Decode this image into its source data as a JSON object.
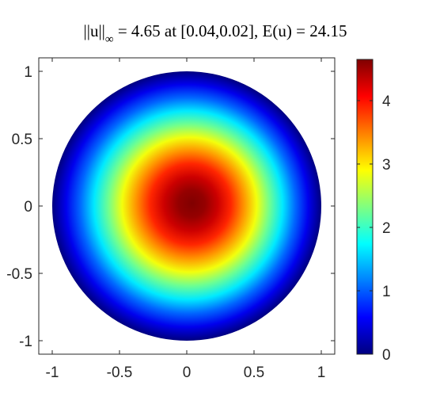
{
  "chart_data": {
    "type": "heatmap",
    "title": {
      "norm_prefix": "||u||",
      "norm_subscript": "∞",
      "rest": " = 4.65 at [0.04,0.02], E(u) = 24.15"
    },
    "xlabel": "",
    "ylabel": "",
    "xlim": [
      -1.1,
      1.1
    ],
    "ylim": [
      -1.1,
      1.1
    ],
    "x_ticks": [
      -1,
      -0.5,
      0,
      0.5,
      1
    ],
    "x_tick_labels": [
      "-1",
      "-0.5",
      "0",
      "0.5",
      "1"
    ],
    "y_ticks": [
      -1,
      -0.5,
      0,
      0.5,
      1
    ],
    "y_tick_labels": [
      "-1",
      "-0.5",
      "0",
      "0.5",
      "1"
    ],
    "domain": {
      "shape": "disk",
      "center": [
        0,
        0
      ],
      "radius": 1
    },
    "peak": {
      "value": 4.65,
      "location": [
        0.04,
        0.02
      ]
    },
    "energy": 24.15,
    "radial_profile": {
      "r": [
        0,
        0.1,
        0.2,
        0.3,
        0.4,
        0.5,
        0.6,
        0.7,
        0.8,
        0.9,
        1.0
      ],
      "u": [
        4.65,
        4.55,
        4.3,
        3.9,
        3.4,
        2.85,
        2.25,
        1.65,
        1.05,
        0.5,
        0
      ]
    },
    "colormap": "jet",
    "colorbar": {
      "range": [
        0,
        4.65
      ],
      "ticks": [
        0,
        1,
        2,
        3,
        4
      ],
      "tick_labels": [
        "0",
        "1",
        "2",
        "3",
        "4"
      ]
    },
    "grid": false
  }
}
